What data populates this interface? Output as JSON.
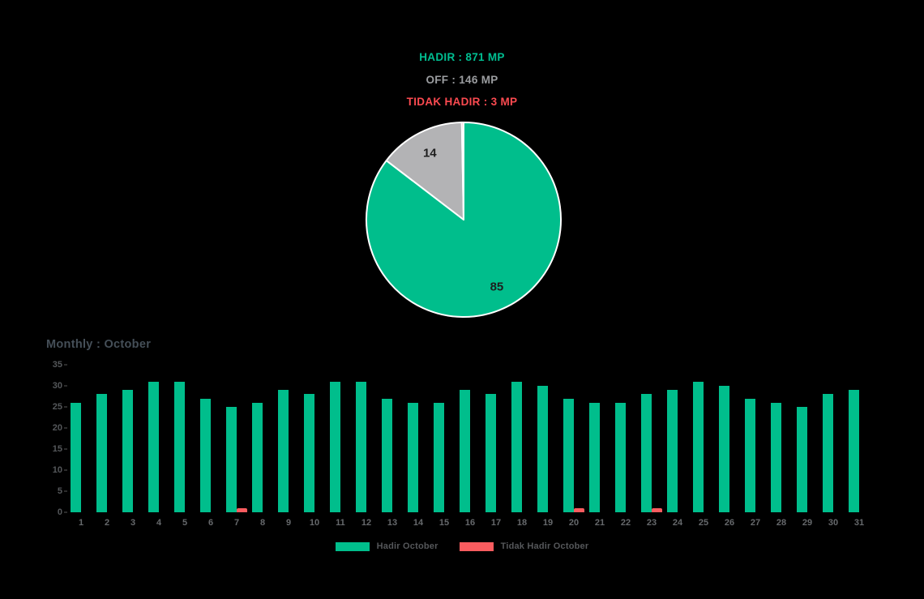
{
  "summary_labels": [
    {
      "name": "hadir",
      "text": "HADIR : 871 MP",
      "color": "#00bf92"
    },
    {
      "name": "off",
      "text": "OFF : 146 MP",
      "color": "#9b9da0"
    },
    {
      "name": "tidak-hadir",
      "text": "TIDAK HADIR : 3 MP",
      "color": "#fb4a50"
    }
  ],
  "chart_data": [
    {
      "type": "pie",
      "slices": [
        {
          "name": "hadir",
          "value": 871,
          "display_label": "85",
          "color": "#00be8c"
        },
        {
          "name": "off",
          "value": 146,
          "display_label": "14",
          "color": "#b3b3b5"
        },
        {
          "name": "tidak-hadir",
          "value": 3,
          "display_label": "",
          "color": "#f95c5f"
        }
      ],
      "start_angle_deg": 0,
      "direction": "clockwise",
      "border_color": "#ffffff",
      "label_color": "#1e1e1e"
    },
    {
      "type": "bar",
      "title": "Monthly : October",
      "categories": [
        "1",
        "2",
        "3",
        "4",
        "5",
        "6",
        "7",
        "8",
        "9",
        "10",
        "11",
        "12",
        "13",
        "14",
        "15",
        "16",
        "17",
        "18",
        "19",
        "20",
        "21",
        "22",
        "23",
        "24",
        "25",
        "26",
        "27",
        "28",
        "29",
        "30",
        "31"
      ],
      "series": [
        {
          "name": "Hadir October",
          "color": "#00be8c",
          "values": [
            26,
            28,
            29,
            31,
            31,
            27,
            25,
            26,
            29,
            28,
            31,
            31,
            27,
            26,
            26,
            29,
            28,
            31,
            30,
            27,
            26,
            26,
            28,
            29,
            31,
            30,
            27,
            26,
            25,
            28,
            29
          ]
        },
        {
          "name": "Tidak Hadir October",
          "color": "#f95c5f",
          "values": [
            0,
            0,
            0,
            0,
            0,
            0,
            1,
            0,
            0,
            0,
            0,
            0,
            0,
            0,
            0,
            0,
            0,
            0,
            0,
            1,
            0,
            0,
            1,
            0,
            0,
            0,
            0,
            0,
            0,
            0,
            0
          ]
        }
      ],
      "ylim": [
        0,
        35
      ],
      "yticks": [
        0,
        5,
        10,
        15,
        20,
        25,
        30,
        35
      ],
      "grid": false,
      "legend_position": "bottom"
    }
  ]
}
